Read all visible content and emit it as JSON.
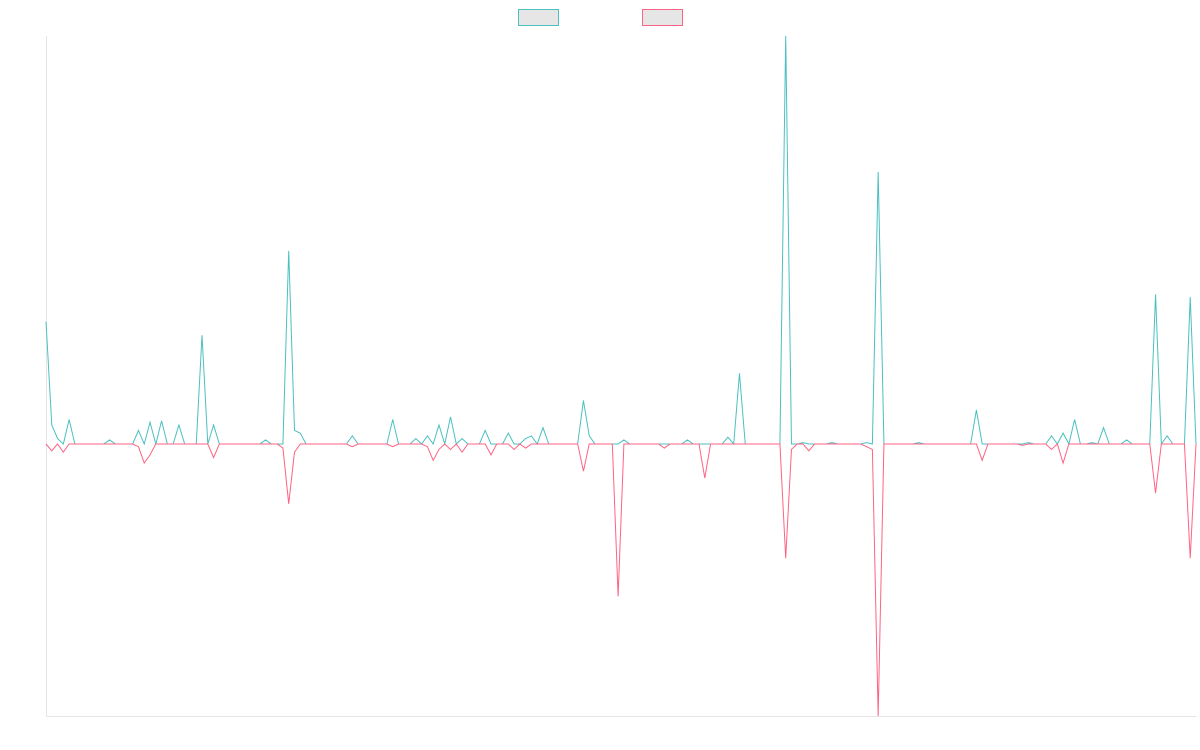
{
  "chart_data": {
    "type": "line",
    "title": "",
    "xlabel": "",
    "ylabel": "",
    "legend": "top-center",
    "grid": false,
    "ylim": [
      -1.0,
      1.5
    ],
    "x_count": 200,
    "series": [
      {
        "color": "#4BC0C0",
        "fill": "#E6E6E6",
        "points": [
          [
            0,
            0.45
          ],
          [
            1,
            0.07
          ],
          [
            2,
            0.02
          ],
          [
            3,
            0.0
          ],
          [
            4,
            0.09
          ],
          [
            5,
            0.0
          ],
          [
            10,
            0.0
          ],
          [
            11,
            0.015
          ],
          [
            12,
            0.0
          ],
          [
            15,
            0.0
          ],
          [
            16,
            0.05
          ],
          [
            17,
            0.0
          ],
          [
            18,
            0.08
          ],
          [
            19,
            0.0
          ],
          [
            20,
            0.085
          ],
          [
            21,
            0.0
          ],
          [
            22,
            0.0
          ],
          [
            23,
            0.07
          ],
          [
            24,
            0.0
          ],
          [
            26,
            0.0
          ],
          [
            27,
            0.4
          ],
          [
            28,
            0.0
          ],
          [
            29,
            0.07
          ],
          [
            30,
            0.0
          ],
          [
            37,
            0.0
          ],
          [
            38,
            0.015
          ],
          [
            39,
            0.0
          ],
          [
            41,
            0.0
          ],
          [
            42,
            0.71
          ],
          [
            43,
            0.05
          ],
          [
            44,
            0.04
          ],
          [
            45,
            0.0
          ],
          [
            52,
            0.0
          ],
          [
            53,
            0.03
          ],
          [
            54,
            0.0
          ],
          [
            59,
            0.0
          ],
          [
            60,
            0.09
          ],
          [
            61,
            0.0
          ],
          [
            63,
            0.0
          ],
          [
            64,
            0.02
          ],
          [
            65,
            0.0
          ],
          [
            66,
            0.03
          ],
          [
            67,
            0.0
          ],
          [
            68,
            0.07
          ],
          [
            69,
            0.0
          ],
          [
            70,
            0.1
          ],
          [
            71,
            0.0
          ],
          [
            72,
            0.02
          ],
          [
            73,
            0.0
          ],
          [
            75,
            0.0
          ],
          [
            76,
            0.05
          ],
          [
            77,
            0.0
          ],
          [
            79,
            0.0
          ],
          [
            80,
            0.04
          ],
          [
            81,
            0.0
          ],
          [
            82,
            0.0
          ],
          [
            83,
            0.02
          ],
          [
            84,
            0.03
          ],
          [
            85,
            0.0
          ],
          [
            86,
            0.06
          ],
          [
            87,
            0.0
          ],
          [
            92,
            0.0
          ],
          [
            93,
            0.16
          ],
          [
            94,
            0.03
          ],
          [
            95,
            0.0
          ],
          [
            99,
            0.0
          ],
          [
            100,
            0.015
          ],
          [
            101,
            0.0
          ],
          [
            110,
            0.0
          ],
          [
            111,
            0.015
          ],
          [
            112,
            0.0
          ],
          [
            117,
            0.0
          ],
          [
            118,
            0.025
          ],
          [
            119,
            0.0
          ],
          [
            120,
            0.26
          ],
          [
            121,
            0.0
          ],
          [
            127,
            0.0
          ],
          [
            128,
            1.5
          ],
          [
            129,
            0.0
          ],
          [
            130,
            0.0
          ],
          [
            131,
            0.005
          ],
          [
            132,
            0.0
          ],
          [
            135,
            0.0
          ],
          [
            136,
            0.005
          ],
          [
            137,
            0.0
          ],
          [
            141,
            0.0
          ],
          [
            142,
            0.005
          ],
          [
            143,
            0.0
          ],
          [
            144,
            1.0
          ],
          [
            145,
            0.0
          ],
          [
            150,
            0.0
          ],
          [
            151,
            0.005
          ],
          [
            152,
            0.0
          ],
          [
            160,
            0.0
          ],
          [
            161,
            0.125
          ],
          [
            162,
            0.0
          ],
          [
            169,
            0.0
          ],
          [
            170,
            0.005
          ],
          [
            171,
            0.0
          ],
          [
            173,
            0.0
          ],
          [
            174,
            0.03
          ],
          [
            175,
            0.0
          ],
          [
            176,
            0.04
          ],
          [
            177,
            0.0
          ],
          [
            178,
            0.09
          ],
          [
            179,
            0.0
          ],
          [
            180,
            0.0
          ],
          [
            181,
            0.005
          ],
          [
            182,
            0.0
          ],
          [
            183,
            0.06
          ],
          [
            184,
            0.0
          ],
          [
            186,
            0.0
          ],
          [
            187,
            0.015
          ],
          [
            188,
            0.0
          ],
          [
            191,
            0.0
          ],
          [
            192,
            0.55
          ],
          [
            193,
            0.0
          ],
          [
            194,
            0.03
          ],
          [
            195,
            0.0
          ],
          [
            197,
            0.0
          ],
          [
            198,
            0.54
          ],
          [
            199,
            0.0
          ]
        ]
      },
      {
        "color": "#FF6384",
        "fill": "#E6E6E6",
        "points": [
          [
            0,
            0.0
          ],
          [
            1,
            -0.025
          ],
          [
            2,
            0.0
          ],
          [
            3,
            -0.03
          ],
          [
            4,
            0.0
          ],
          [
            10,
            0.0
          ],
          [
            11,
            0.0
          ],
          [
            15,
            0.0
          ],
          [
            16,
            -0.01
          ],
          [
            17,
            -0.07
          ],
          [
            18,
            -0.04
          ],
          [
            19,
            0.0
          ],
          [
            27,
            0.0
          ],
          [
            28,
            0.0
          ],
          [
            29,
            -0.05
          ],
          [
            30,
            0.0
          ],
          [
            40,
            0.0
          ],
          [
            41,
            -0.015
          ],
          [
            42,
            -0.22
          ],
          [
            43,
            -0.03
          ],
          [
            44,
            0.0
          ],
          [
            52,
            0.0
          ],
          [
            53,
            -0.01
          ],
          [
            54,
            0.0
          ],
          [
            59,
            0.0
          ],
          [
            60,
            -0.01
          ],
          [
            61,
            0.0
          ],
          [
            65,
            0.0
          ],
          [
            66,
            -0.01
          ],
          [
            67,
            -0.06
          ],
          [
            68,
            -0.02
          ],
          [
            69,
            0.0
          ],
          [
            70,
            -0.02
          ],
          [
            71,
            0.0
          ],
          [
            72,
            -0.03
          ],
          [
            73,
            0.0
          ],
          [
            76,
            0.0
          ],
          [
            77,
            -0.04
          ],
          [
            78,
            0.0
          ],
          [
            80,
            0.0
          ],
          [
            81,
            -0.02
          ],
          [
            82,
            0.0
          ],
          [
            83,
            -0.015
          ],
          [
            84,
            0.0
          ],
          [
            92,
            0.0
          ],
          [
            93,
            -0.1
          ],
          [
            94,
            0.0
          ],
          [
            98,
            0.0
          ],
          [
            99,
            -0.56
          ],
          [
            100,
            0.0
          ],
          [
            106,
            0.0
          ],
          [
            107,
            -0.015
          ],
          [
            108,
            0.0
          ],
          [
            113,
            0.0
          ],
          [
            114,
            -0.125
          ],
          [
            115,
            0.0
          ],
          [
            127,
            0.0
          ],
          [
            128,
            -0.42
          ],
          [
            129,
            -0.02
          ],
          [
            130,
            0.0
          ],
          [
            131,
            0.0
          ],
          [
            132,
            -0.025
          ],
          [
            133,
            0.0
          ],
          [
            141,
            0.0
          ],
          [
            142,
            -0.01
          ],
          [
            143,
            -0.02
          ],
          [
            144,
            -1.0
          ],
          [
            145,
            0.0
          ],
          [
            161,
            0.0
          ],
          [
            162,
            -0.06
          ],
          [
            163,
            0.0
          ],
          [
            168,
            0.0
          ],
          [
            169,
            -0.005
          ],
          [
            170,
            0.0
          ],
          [
            173,
            0.0
          ],
          [
            174,
            -0.02
          ],
          [
            175,
            0.0
          ],
          [
            176,
            -0.07
          ],
          [
            177,
            0.0
          ],
          [
            191,
            0.0
          ],
          [
            192,
            -0.18
          ],
          [
            193,
            0.0
          ],
          [
            197,
            0.0
          ],
          [
            198,
            -0.42
          ],
          [
            199,
            0.0
          ]
        ]
      }
    ]
  }
}
